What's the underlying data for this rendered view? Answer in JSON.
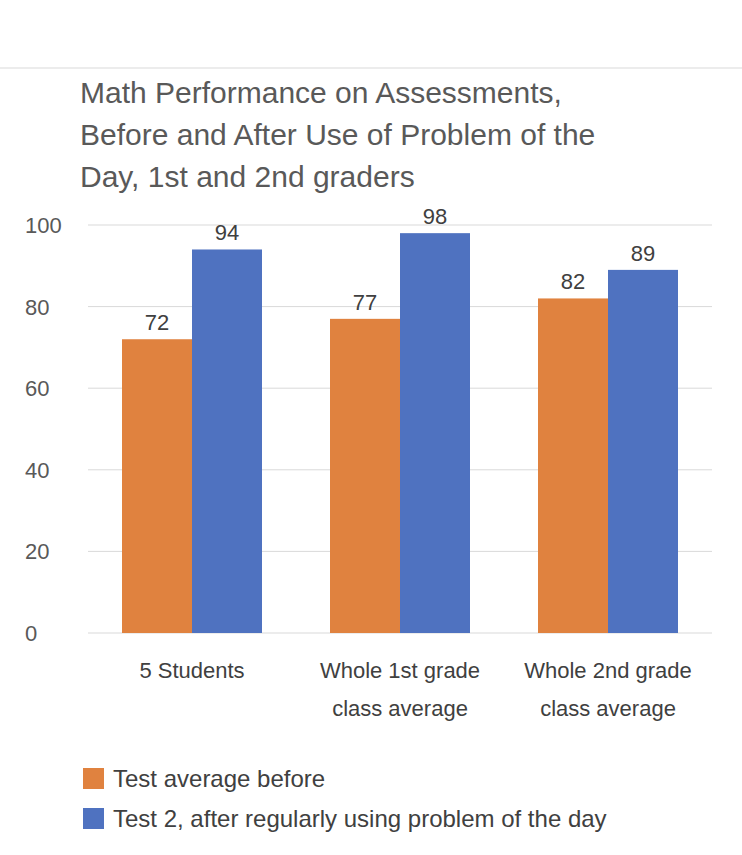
{
  "chart_data": {
    "type": "bar",
    "title": "Math Performance on Assessments, Before and After Use of Problem of the Day, 1st and 2nd graders",
    "categories": [
      "5 Students",
      "Whole 1st grade class average",
      "Whole 2nd grade class average"
    ],
    "series": [
      {
        "name": "Test average before",
        "color": "#e0823f",
        "values": [
          72,
          77,
          82
        ]
      },
      {
        "name": "Test 2, after regularly using problem of the day",
        "color": "#4f72c0",
        "values": [
          94,
          98,
          89
        ]
      }
    ],
    "ylim": [
      0,
      100
    ],
    "yticks": [
      0,
      20,
      40,
      60,
      80,
      100
    ],
    "grid": true,
    "legend": "bottom",
    "data_labels": true
  }
}
